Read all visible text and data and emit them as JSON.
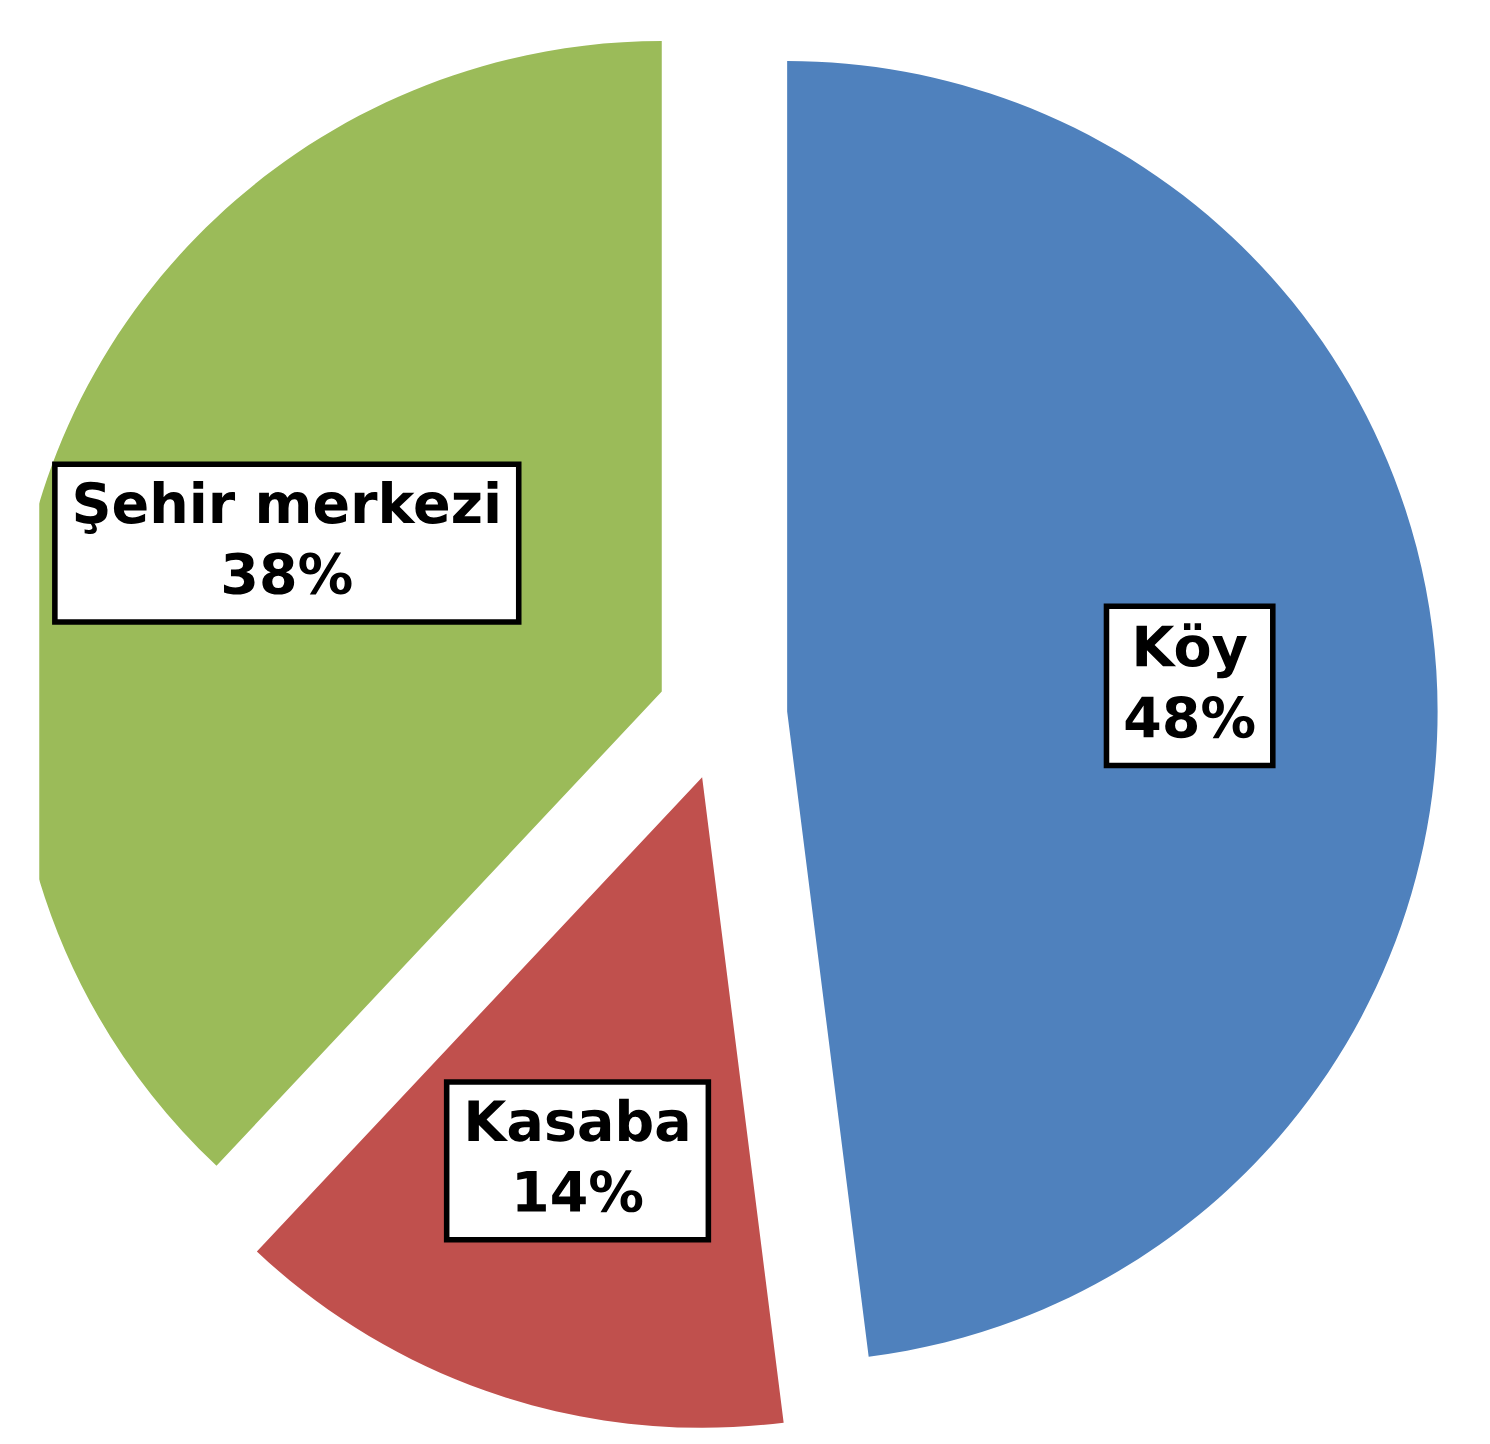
{
  "chart_data": {
    "type": "pie",
    "categories": [
      "Köy",
      "Kasaba",
      "Şehir merkezi"
    ],
    "values": [
      48,
      14,
      38
    ],
    "value_labels": [
      "48%",
      "14%",
      "38%"
    ],
    "colors": [
      "#4f81bd",
      "#c0504d",
      "#9bbb59"
    ]
  }
}
